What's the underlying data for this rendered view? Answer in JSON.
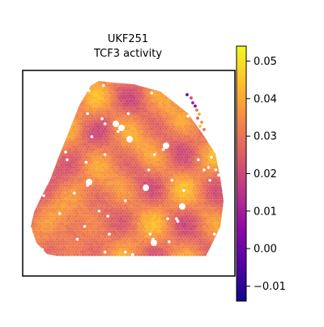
{
  "chart_data": {
    "type": "heatmap",
    "title_line1": "UKF251",
    "title_line2": "TCF3 activity",
    "xlabel": "",
    "ylabel": "",
    "colorbar": {
      "min": -0.014,
      "max": 0.054,
      "ticks": [
        -0.01,
        0.0,
        0.01,
        0.02,
        0.03,
        0.04,
        0.05
      ],
      "tick_labels": [
        "−0.01",
        "0.00",
        "0.01",
        "0.02",
        "0.03",
        "0.04",
        "0.05"
      ],
      "colormap": "plasma",
      "stops": [
        "#0d0887",
        "#5302a3",
        "#8b0aa5",
        "#b83289",
        "#db5c68",
        "#f48849",
        "#febd2a",
        "#f0f921"
      ]
    },
    "tissue_outline_xy": [
      [
        0.0,
        0.0
      ]
    ],
    "grid": false
  }
}
